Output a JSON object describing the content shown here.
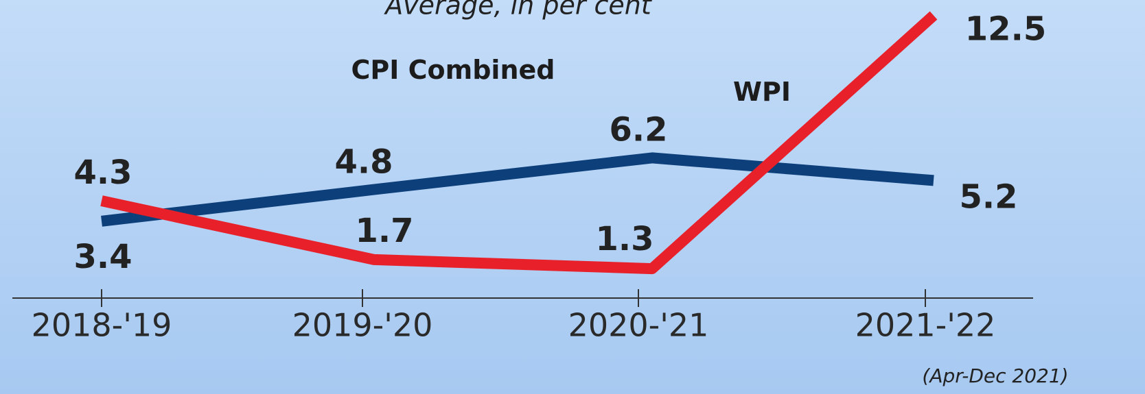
{
  "chart_data": {
    "type": "line",
    "title": "Average, in per cent",
    "categories": [
      "2018-'19",
      "2019-'20",
      "2020-'21",
      "2021-'22"
    ],
    "annotation": "(Apr-Dec 2021)",
    "series": [
      {
        "name": "CPI Combined",
        "color": "#0d3f7a",
        "values": [
          3.4,
          4.8,
          6.2,
          5.2
        ]
      },
      {
        "name": "WPI",
        "color": "#e8202a",
        "values": [
          4.3,
          1.7,
          1.3,
          12.5
        ]
      }
    ]
  }
}
